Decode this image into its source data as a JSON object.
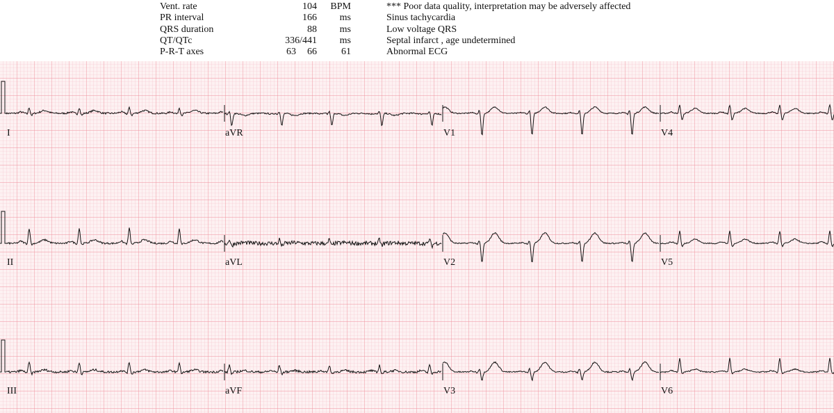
{
  "measurements": [
    {
      "label": "Vent. rate",
      "value": "104",
      "unit": "BPM"
    },
    {
      "label": "PR interval",
      "value": "166",
      "unit": "ms"
    },
    {
      "label": "QRS duration",
      "value": "88",
      "unit": "ms"
    },
    {
      "label": "QT/QTc",
      "value": "336/441",
      "unit": "ms"
    },
    {
      "label": "P-R-T axes",
      "values": [
        "63",
        "66",
        "61"
      ]
    }
  ],
  "interpretation": [
    "*** Poor data quality, interpretation may be adversely affected",
    "Sinus tachycardia",
    "Low voltage QRS",
    "Septal infarct , age undetermined",
    "Abnormal ECG"
  ],
  "leads": [
    [
      "I",
      "aVR",
      "V1",
      "V4"
    ],
    [
      "II",
      "aVL",
      "V2",
      "V5"
    ],
    [
      "III",
      "aVF",
      "V3",
      "V6"
    ]
  ]
}
